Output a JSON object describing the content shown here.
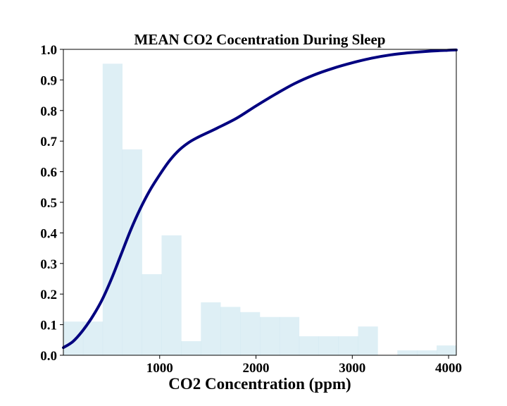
{
  "chart_data": {
    "type": "bar",
    "title": "MEAN CO2 Cocentration During Sleep",
    "xlabel": "CO2 Concentration (ppm)",
    "ylabel": "",
    "xlim": [
      0,
      4080
    ],
    "ylim": [
      0,
      1.0
    ],
    "xticks": [
      1000,
      2000,
      3000,
      4000
    ],
    "yticks": [
      0.0,
      0.1,
      0.2,
      0.3,
      0.4,
      0.5,
      0.6,
      0.7,
      0.8,
      0.9,
      1.0
    ],
    "grid": false,
    "legend": "none",
    "colors": {
      "bars": "#add8e6",
      "curve": "#000080"
    },
    "histogram": {
      "bin_width": 204,
      "bin_starts": [
        0,
        204,
        408,
        612,
        816,
        1020,
        1224,
        1428,
        1632,
        1836,
        2040,
        2244,
        2448,
        2652,
        2856,
        3060,
        3264,
        3468,
        3672,
        3876
      ],
      "values": [
        0.11,
        0.11,
        0.953,
        0.673,
        0.265,
        0.392,
        0.046,
        0.173,
        0.158,
        0.141,
        0.125,
        0.125,
        0.062,
        0.062,
        0.062,
        0.094,
        0.0,
        0.016,
        0.016,
        0.032
      ]
    },
    "cdf_curve": {
      "x": [
        0,
        100,
        200,
        300,
        400,
        500,
        600,
        700,
        800,
        900,
        1000,
        1100,
        1200,
        1300,
        1400,
        1500,
        1600,
        1800,
        2000,
        2200,
        2400,
        2600,
        2800,
        3000,
        3200,
        3400,
        3600,
        3800,
        4000,
        4080
      ],
      "y": [
        0.025,
        0.045,
        0.08,
        0.125,
        0.18,
        0.25,
        0.33,
        0.41,
        0.48,
        0.54,
        0.59,
        0.635,
        0.67,
        0.695,
        0.713,
        0.728,
        0.743,
        0.775,
        0.815,
        0.853,
        0.888,
        0.916,
        0.938,
        0.956,
        0.971,
        0.982,
        0.989,
        0.994,
        0.997,
        0.998
      ]
    }
  }
}
